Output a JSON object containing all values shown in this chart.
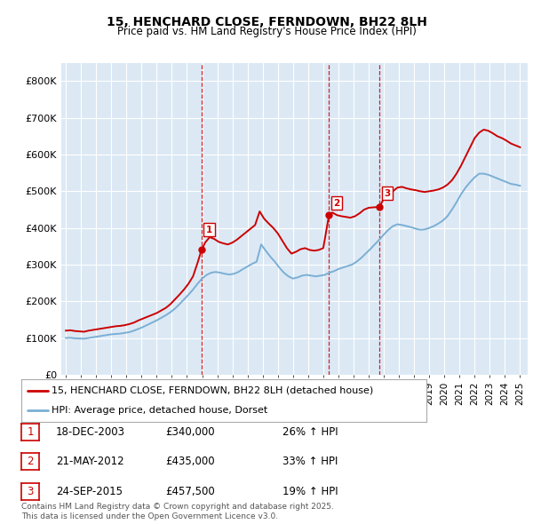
{
  "title": "15, HENCHARD CLOSE, FERNDOWN, BH22 8LH",
  "subtitle": "Price paid vs. HM Land Registry's House Price Index (HPI)",
  "red_label": "15, HENCHARD CLOSE, FERNDOWN, BH22 8LH (detached house)",
  "blue_label": "HPI: Average price, detached house, Dorset",
  "red_color": "#cc0000",
  "blue_color": "#7bafd4",
  "vline_color": "#cc0000",
  "plot_bg": "#dce9f5",
  "ylim": [
    0,
    850000
  ],
  "yticks": [
    0,
    100000,
    200000,
    300000,
    400000,
    500000,
    600000,
    700000,
    800000
  ],
  "ytick_labels": [
    "£0",
    "£100K",
    "£200K",
    "£300K",
    "£400K",
    "£500K",
    "£600K",
    "£700K",
    "£800K"
  ],
  "sale_prices": [
    340000,
    435000,
    457500
  ],
  "sale_labels": [
    "1",
    "2",
    "3"
  ],
  "sale_info": [
    {
      "num": "1",
      "date": "18-DEC-2003",
      "price": "£340,000",
      "hpi": "26% ↑ HPI"
    },
    {
      "num": "2",
      "date": "21-MAY-2012",
      "price": "£435,000",
      "hpi": "33% ↑ HPI"
    },
    {
      "num": "3",
      "date": "24-SEP-2015",
      "price": "£457,500",
      "hpi": "19% ↑ HPI"
    }
  ],
  "footer": "Contains HM Land Registry data © Crown copyright and database right 2025.\nThis data is licensed under the Open Government Licence v3.0.",
  "red_x": [
    1995.0,
    1995.3,
    1995.6,
    1995.9,
    1996.2,
    1996.5,
    1996.8,
    1997.1,
    1997.4,
    1997.7,
    1998.0,
    1998.3,
    1998.6,
    1998.9,
    1999.2,
    1999.5,
    1999.8,
    2000.1,
    2000.4,
    2000.7,
    2001.0,
    2001.3,
    2001.6,
    2001.9,
    2002.2,
    2002.5,
    2002.8,
    2003.1,
    2003.4,
    2003.7,
    2003.96,
    2004.2,
    2004.5,
    2004.8,
    2005.1,
    2005.4,
    2005.7,
    2006.0,
    2006.3,
    2006.6,
    2006.9,
    2007.2,
    2007.5,
    2007.8,
    2008.1,
    2008.4,
    2008.7,
    2009.0,
    2009.3,
    2009.6,
    2009.9,
    2010.2,
    2010.5,
    2010.8,
    2011.1,
    2011.4,
    2011.7,
    2012.0,
    2012.38,
    2012.6,
    2012.9,
    2013.2,
    2013.5,
    2013.8,
    2014.1,
    2014.4,
    2014.7,
    2015.0,
    2015.72,
    2016.0,
    2016.3,
    2016.6,
    2016.9,
    2017.2,
    2017.5,
    2017.8,
    2018.1,
    2018.4,
    2018.7,
    2019.0,
    2019.3,
    2019.6,
    2019.9,
    2020.2,
    2020.5,
    2020.8,
    2021.1,
    2021.4,
    2021.7,
    2022.0,
    2022.3,
    2022.6,
    2022.9,
    2023.2,
    2023.5,
    2023.8,
    2024.1,
    2024.4,
    2024.7,
    2025.0
  ],
  "red_y": [
    120000,
    121000,
    119000,
    118000,
    117000,
    120000,
    122000,
    124000,
    126000,
    128000,
    130000,
    132000,
    133000,
    135000,
    138000,
    142000,
    148000,
    153000,
    158000,
    163000,
    168000,
    175000,
    182000,
    192000,
    205000,
    218000,
    232000,
    248000,
    268000,
    305000,
    340000,
    360000,
    375000,
    370000,
    362000,
    358000,
    355000,
    360000,
    368000,
    378000,
    388000,
    398000,
    408000,
    445000,
    425000,
    412000,
    400000,
    385000,
    365000,
    345000,
    330000,
    335000,
    342000,
    345000,
    340000,
    338000,
    340000,
    345000,
    435000,
    442000,
    435000,
    432000,
    430000,
    428000,
    432000,
    440000,
    450000,
    455000,
    457500,
    480000,
    492000,
    500000,
    510000,
    512000,
    508000,
    505000,
    503000,
    500000,
    498000,
    500000,
    502000,
    505000,
    510000,
    518000,
    530000,
    548000,
    570000,
    595000,
    620000,
    645000,
    660000,
    668000,
    665000,
    658000,
    650000,
    645000,
    638000,
    630000,
    625000,
    620000
  ],
  "blue_x": [
    1995.0,
    1995.3,
    1995.6,
    1995.9,
    1996.2,
    1996.5,
    1996.8,
    1997.1,
    1997.4,
    1997.7,
    1998.0,
    1998.3,
    1998.6,
    1998.9,
    1999.2,
    1999.5,
    1999.8,
    2000.1,
    2000.4,
    2000.7,
    2001.0,
    2001.3,
    2001.6,
    2001.9,
    2002.2,
    2002.5,
    2002.8,
    2003.1,
    2003.4,
    2003.7,
    2004.0,
    2004.3,
    2004.6,
    2004.9,
    2005.2,
    2005.5,
    2005.8,
    2006.1,
    2006.4,
    2006.7,
    2007.0,
    2007.3,
    2007.6,
    2007.9,
    2008.2,
    2008.5,
    2008.8,
    2009.1,
    2009.4,
    2009.7,
    2010.0,
    2010.3,
    2010.6,
    2010.9,
    2011.2,
    2011.5,
    2011.8,
    2012.1,
    2012.4,
    2012.7,
    2013.0,
    2013.3,
    2013.6,
    2013.9,
    2014.2,
    2014.5,
    2014.8,
    2015.1,
    2015.4,
    2015.7,
    2016.0,
    2016.3,
    2016.6,
    2016.9,
    2017.2,
    2017.5,
    2017.8,
    2018.1,
    2018.4,
    2018.7,
    2019.0,
    2019.3,
    2019.6,
    2019.9,
    2020.2,
    2020.5,
    2020.8,
    2021.1,
    2021.4,
    2021.7,
    2022.0,
    2022.3,
    2022.6,
    2022.9,
    2023.2,
    2023.5,
    2023.8,
    2024.1,
    2024.4,
    2024.7,
    2025.0
  ],
  "blue_y": [
    100000,
    100500,
    99000,
    98500,
    98000,
    100000,
    102000,
    104000,
    106000,
    108000,
    110000,
    111000,
    112000,
    114000,
    116000,
    120000,
    125000,
    130000,
    136000,
    142000,
    148000,
    155000,
    162000,
    170000,
    180000,
    192000,
    205000,
    218000,
    232000,
    248000,
    262000,
    272000,
    278000,
    280000,
    278000,
    275000,
    273000,
    275000,
    280000,
    288000,
    295000,
    302000,
    308000,
    355000,
    338000,
    322000,
    308000,
    292000,
    278000,
    268000,
    262000,
    265000,
    270000,
    272000,
    270000,
    268000,
    270000,
    272000,
    278000,
    282000,
    288000,
    292000,
    296000,
    300000,
    308000,
    318000,
    330000,
    342000,
    355000,
    368000,
    382000,
    395000,
    405000,
    410000,
    408000,
    405000,
    402000,
    398000,
    395000,
    396000,
    400000,
    405000,
    412000,
    420000,
    432000,
    450000,
    470000,
    492000,
    510000,
    525000,
    538000,
    548000,
    548000,
    545000,
    540000,
    535000,
    530000,
    525000,
    520000,
    518000,
    515000
  ],
  "vline_x": [
    2003.96,
    2012.38,
    2015.72
  ],
  "xlabel_years": [
    1995,
    1996,
    1997,
    1998,
    1999,
    2000,
    2001,
    2002,
    2003,
    2004,
    2005,
    2006,
    2007,
    2008,
    2009,
    2010,
    2011,
    2012,
    2013,
    2014,
    2015,
    2016,
    2017,
    2018,
    2019,
    2020,
    2021,
    2022,
    2023,
    2024,
    2025
  ]
}
